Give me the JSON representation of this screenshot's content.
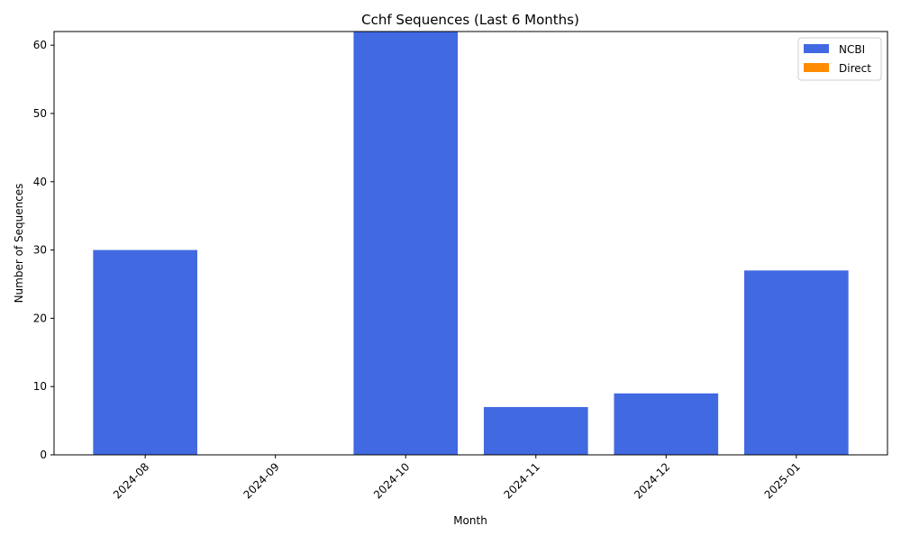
{
  "chart_data": {
    "type": "bar",
    "title": "Cchf Sequences (Last 6 Months)",
    "xlabel": "Month",
    "ylabel": "Number of Sequences",
    "categories": [
      "2024-08",
      "2024-09",
      "2024-10",
      "2024-11",
      "2024-12",
      "2025-01"
    ],
    "series": [
      {
        "name": "NCBI",
        "color": "#4169E1",
        "values": [
          30,
          0,
          62,
          7,
          9,
          27
        ]
      },
      {
        "name": "Direct",
        "color": "#FF8C00",
        "values": [
          0,
          0,
          0,
          0,
          0,
          0
        ]
      }
    ],
    "stacked": true,
    "ylim": [
      0,
      62
    ],
    "yticks": [
      0,
      10,
      20,
      30,
      40,
      50,
      60
    ],
    "grid": false,
    "legend_position": "top-right"
  }
}
